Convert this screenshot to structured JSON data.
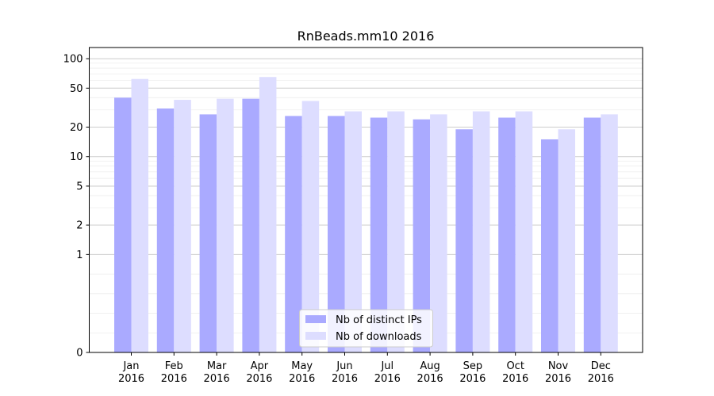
{
  "chart_data": {
    "type": "bar",
    "title": "RnBeads.mm10 2016",
    "xlabel": "",
    "ylabel": "",
    "y_scale": "symlog",
    "ylim": [
      0,
      130
    ],
    "y_ticks": [
      0,
      1,
      2,
      5,
      10,
      20,
      50,
      100
    ],
    "grid": true,
    "legend_position": "lower center",
    "categories": [
      [
        "Jan",
        "2016"
      ],
      [
        "Feb",
        "2016"
      ],
      [
        "Mar",
        "2016"
      ],
      [
        "Apr",
        "2016"
      ],
      [
        "May",
        "2016"
      ],
      [
        "Jun",
        "2016"
      ],
      [
        "Jul",
        "2016"
      ],
      [
        "Aug",
        "2016"
      ],
      [
        "Sep",
        "2016"
      ],
      [
        "Oct",
        "2016"
      ],
      [
        "Nov",
        "2016"
      ],
      [
        "Dec",
        "2016"
      ]
    ],
    "series": [
      {
        "name": "Nb of distinct IPs",
        "color": "#aaaaff",
        "values": [
          40,
          31,
          27,
          39,
          26,
          26,
          25,
          24,
          19,
          25,
          15,
          25
        ]
      },
      {
        "name": "Nb of downloads",
        "color": "#ddddff",
        "values": [
          62,
          38,
          39,
          65,
          37,
          29,
          29,
          27,
          29,
          29,
          19,
          27
        ]
      }
    ]
  }
}
